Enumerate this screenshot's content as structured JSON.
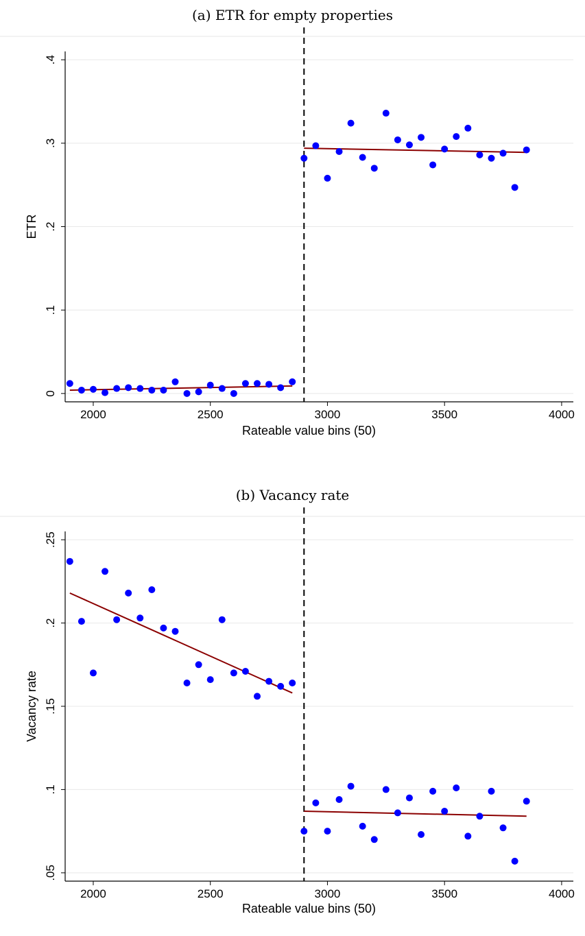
{
  "chart_data": [
    {
      "type": "scatter",
      "title": "(a) ETR for empty properties",
      "xlabel": "Rateable value bins (50)",
      "ylabel": "ETR",
      "xlim": [
        1880,
        4050
      ],
      "ylim": [
        -0.01,
        0.41
      ],
      "xticks": [
        2000,
        2500,
        3000,
        3500,
        4000
      ],
      "xtick_labels": [
        "2000",
        "2500",
        "3000",
        "3500",
        "4000"
      ],
      "yticks": [
        0,
        0.1,
        0.2,
        0.3,
        0.4
      ],
      "ytick_labels": [
        "0",
        ".1",
        ".2",
        ".3",
        ".4"
      ],
      "cutoff_x": 2900,
      "grid": true,
      "colors": {
        "points": "#0000ff",
        "fit": "#8b0000",
        "cutoff": "#000000",
        "grid": "#e8e8e8"
      },
      "points": {
        "x": [
          1900,
          1950,
          2000,
          2050,
          2100,
          2150,
          2200,
          2250,
          2300,
          2350,
          2400,
          2450,
          2500,
          2550,
          2600,
          2650,
          2700,
          2750,
          2800,
          2850,
          2900,
          2950,
          3000,
          3050,
          3100,
          3150,
          3200,
          3250,
          3300,
          3350,
          3400,
          3450,
          3500,
          3550,
          3600,
          3650,
          3700,
          3750,
          3800,
          3850
        ],
        "y": [
          0.012,
          0.004,
          0.005,
          0.001,
          0.006,
          0.007,
          0.006,
          0.004,
          0.004,
          0.014,
          0.0,
          0.002,
          0.01,
          0.006,
          0.0,
          0.012,
          0.012,
          0.011,
          0.007,
          0.014,
          0.282,
          0.297,
          0.258,
          0.29,
          0.324,
          0.283,
          0.27,
          0.336,
          0.304,
          0.298,
          0.307,
          0.274,
          0.293,
          0.308,
          0.318,
          0.286,
          0.282,
          0.288,
          0.247,
          0.292
        ]
      },
      "fit_lines": [
        {
          "x": [
            1900,
            2850
          ],
          "y": [
            0.004,
            0.009
          ]
        },
        {
          "x": [
            2900,
            3850
          ],
          "y": [
            0.294,
            0.289
          ]
        }
      ]
    },
    {
      "type": "scatter",
      "title": "(b) Vacancy rate",
      "xlabel": "Rateable value bins (50)",
      "ylabel": "Vacancy rate",
      "xlim": [
        1880,
        4050
      ],
      "ylim": [
        0.045,
        0.255
      ],
      "xticks": [
        2000,
        2500,
        3000,
        3500,
        4000
      ],
      "xtick_labels": [
        "2000",
        "2500",
        "3000",
        "3500",
        "4000"
      ],
      "yticks": [
        0.05,
        0.1,
        0.15,
        0.2,
        0.25
      ],
      "ytick_labels": [
        ".05",
        ".1",
        ".15",
        ".2",
        ".25"
      ],
      "cutoff_x": 2900,
      "grid": true,
      "colors": {
        "points": "#0000ff",
        "fit": "#8b0000",
        "cutoff": "#000000",
        "grid": "#e8e8e8"
      },
      "points": {
        "x": [
          1900,
          1950,
          2000,
          2050,
          2100,
          2150,
          2200,
          2250,
          2300,
          2350,
          2400,
          2450,
          2500,
          2550,
          2600,
          2650,
          2700,
          2750,
          2800,
          2850,
          2900,
          2950,
          3000,
          3050,
          3100,
          3150,
          3200,
          3250,
          3300,
          3350,
          3400,
          3450,
          3500,
          3550,
          3600,
          3650,
          3700,
          3750,
          3800,
          3850
        ],
        "y": [
          0.237,
          0.201,
          0.17,
          0.231,
          0.202,
          0.218,
          0.203,
          0.22,
          0.197,
          0.195,
          0.164,
          0.175,
          0.166,
          0.202,
          0.17,
          0.171,
          0.156,
          0.165,
          0.162,
          0.164,
          0.075,
          0.092,
          0.075,
          0.094,
          0.102,
          0.078,
          0.07,
          0.1,
          0.086,
          0.095,
          0.073,
          0.099,
          0.087,
          0.101,
          0.072,
          0.084,
          0.099,
          0.077,
          0.057,
          0.093
        ]
      },
      "fit_lines": [
        {
          "x": [
            1900,
            2850
          ],
          "y": [
            0.218,
            0.158
          ]
        },
        {
          "x": [
            2900,
            3850
          ],
          "y": [
            0.087,
            0.084
          ]
        }
      ]
    }
  ]
}
